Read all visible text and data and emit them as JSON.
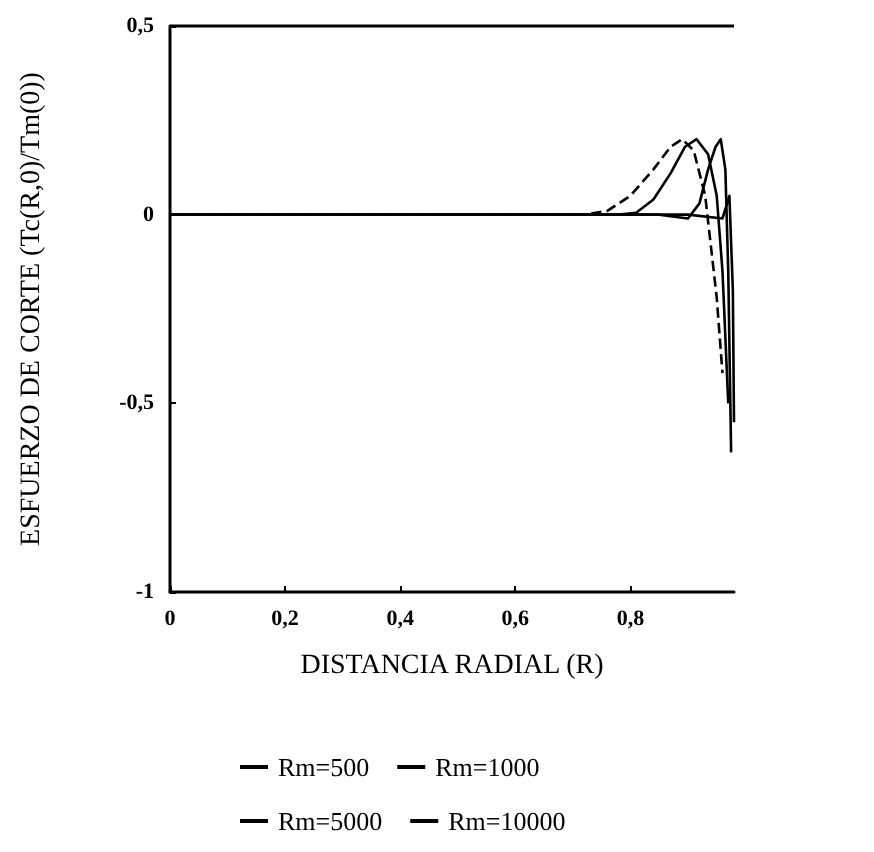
{
  "chart_data": {
    "type": "line",
    "xlabel": "DISTANCIA RADIAL (R)",
    "ylabel": "ESFUERZO DE CORTE (Tc(R,0)/Tm(0))",
    "xlim": [
      0,
      0.98
    ],
    "xticks": [
      0,
      {
        "value": 0.2,
        "label": "0,2"
      },
      {
        "value": 0.4,
        "label": "0,4"
      },
      {
        "value": 0.6,
        "label": "0,6"
      },
      {
        "value": 0.8,
        "label": "0,8"
      }
    ],
    "ylim": [
      -1,
      0.5
    ],
    "yticks": [
      {
        "value": -1,
        "label": "-1"
      },
      {
        "value": -0.5,
        "label": "-0,5"
      },
      0,
      {
        "value": 0.5,
        "label": "0,5"
      }
    ],
    "grid": false,
    "legend": "bottom",
    "marker": "none",
    "series": [
      {
        "name": "Rm=500",
        "color": "#000000",
        "line_style": "dashed",
        "x": [
          0,
          0.3,
          0.6,
          0.72,
          0.76,
          0.8,
          0.84,
          0.87,
          0.89,
          0.91,
          0.93,
          0.95,
          0.96
        ],
        "values": [
          0,
          0,
          0,
          0,
          0.01,
          0.05,
          0.12,
          0.18,
          0.2,
          0.17,
          0.05,
          -0.22,
          -0.42
        ]
      },
      {
        "name": "Rm=1000",
        "color": "#000000",
        "line_style": "solid",
        "x": [
          0,
          0.3,
          0.6,
          0.78,
          0.81,
          0.84,
          0.87,
          0.895,
          0.915,
          0.935,
          0.95,
          0.96,
          0.97
        ],
        "values": [
          0,
          0,
          0,
          0,
          0.005,
          0.04,
          0.11,
          0.18,
          0.2,
          0.16,
          0.05,
          -0.15,
          -0.5
        ]
      },
      {
        "name": "Rm=5000",
        "color": "#000000",
        "line_style": "solid",
        "x": [
          0,
          0.3,
          0.6,
          0.85,
          0.9,
          0.92,
          0.935,
          0.948,
          0.957,
          0.965,
          0.97,
          0.975
        ],
        "values": [
          0,
          0,
          0,
          0,
          -0.01,
          0.03,
          0.12,
          0.18,
          0.2,
          0.12,
          -0.15,
          -0.63
        ]
      },
      {
        "name": "Rm=10000",
        "color": "#000000",
        "line_style": "solid",
        "x": [
          0,
          0.3,
          0.6,
          0.9,
          0.96,
          0.972,
          0.978,
          0.98
        ],
        "values": [
          0,
          0,
          0,
          0,
          -0.01,
          0.05,
          -0.2,
          -0.55
        ]
      }
    ]
  }
}
